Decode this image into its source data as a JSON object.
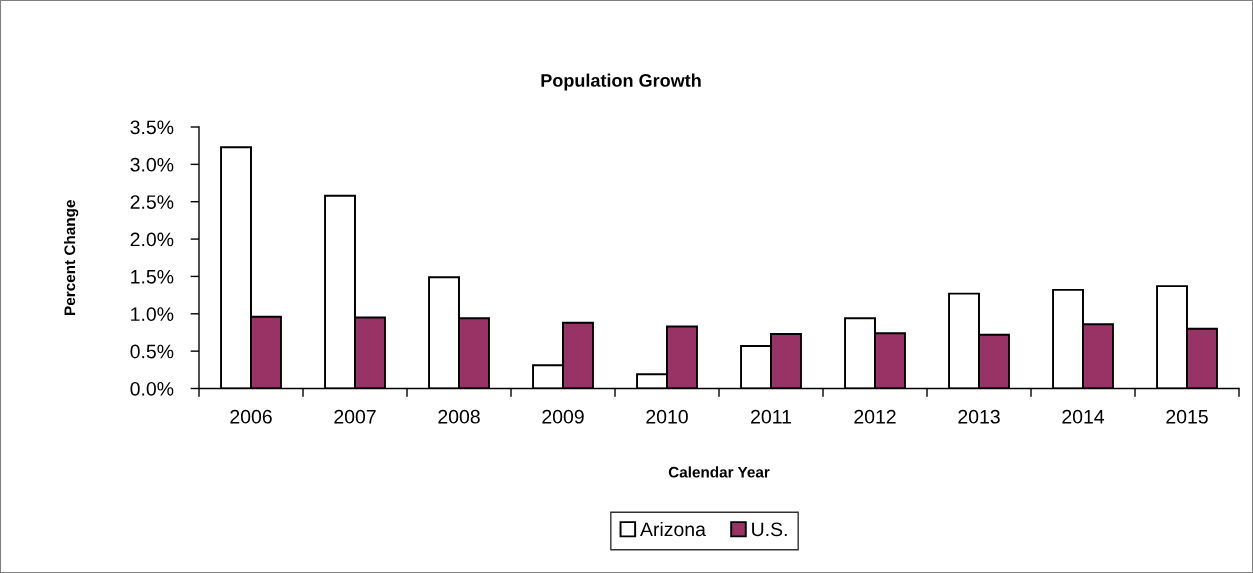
{
  "chart_data": {
    "type": "bar",
    "title": "Population Growth",
    "xlabel": "Calendar Year",
    "ylabel": "Percent Change",
    "categories": [
      "2006",
      "2007",
      "2008",
      "2009",
      "2010",
      "2011",
      "2012",
      "2013",
      "2014",
      "2015"
    ],
    "series": [
      {
        "name": "Arizona",
        "color": "#ffffff",
        "values": [
          3.23,
          2.58,
          1.49,
          0.31,
          0.19,
          0.57,
          0.94,
          1.27,
          1.32,
          1.37
        ]
      },
      {
        "name": "U.S.",
        "color": "#993366",
        "values": [
          0.96,
          0.95,
          0.94,
          0.88,
          0.83,
          0.73,
          0.74,
          0.72,
          0.86,
          0.8
        ]
      }
    ],
    "ylim": [
      0,
      3.5
    ],
    "yticks": [
      {
        "value": 0,
        "label": "0.0%"
      },
      {
        "value": 0.5,
        "label": "0.5%"
      },
      {
        "value": 1,
        "label": "1.0%"
      },
      {
        "value": 1.5,
        "label": "1.5%"
      },
      {
        "value": 2,
        "label": "2.0%"
      },
      {
        "value": 2.5,
        "label": "2.5%"
      },
      {
        "value": 3,
        "label": "3.0%"
      },
      {
        "value": 3.5,
        "label": "3.5%"
      }
    ],
    "legend": "bottom"
  }
}
